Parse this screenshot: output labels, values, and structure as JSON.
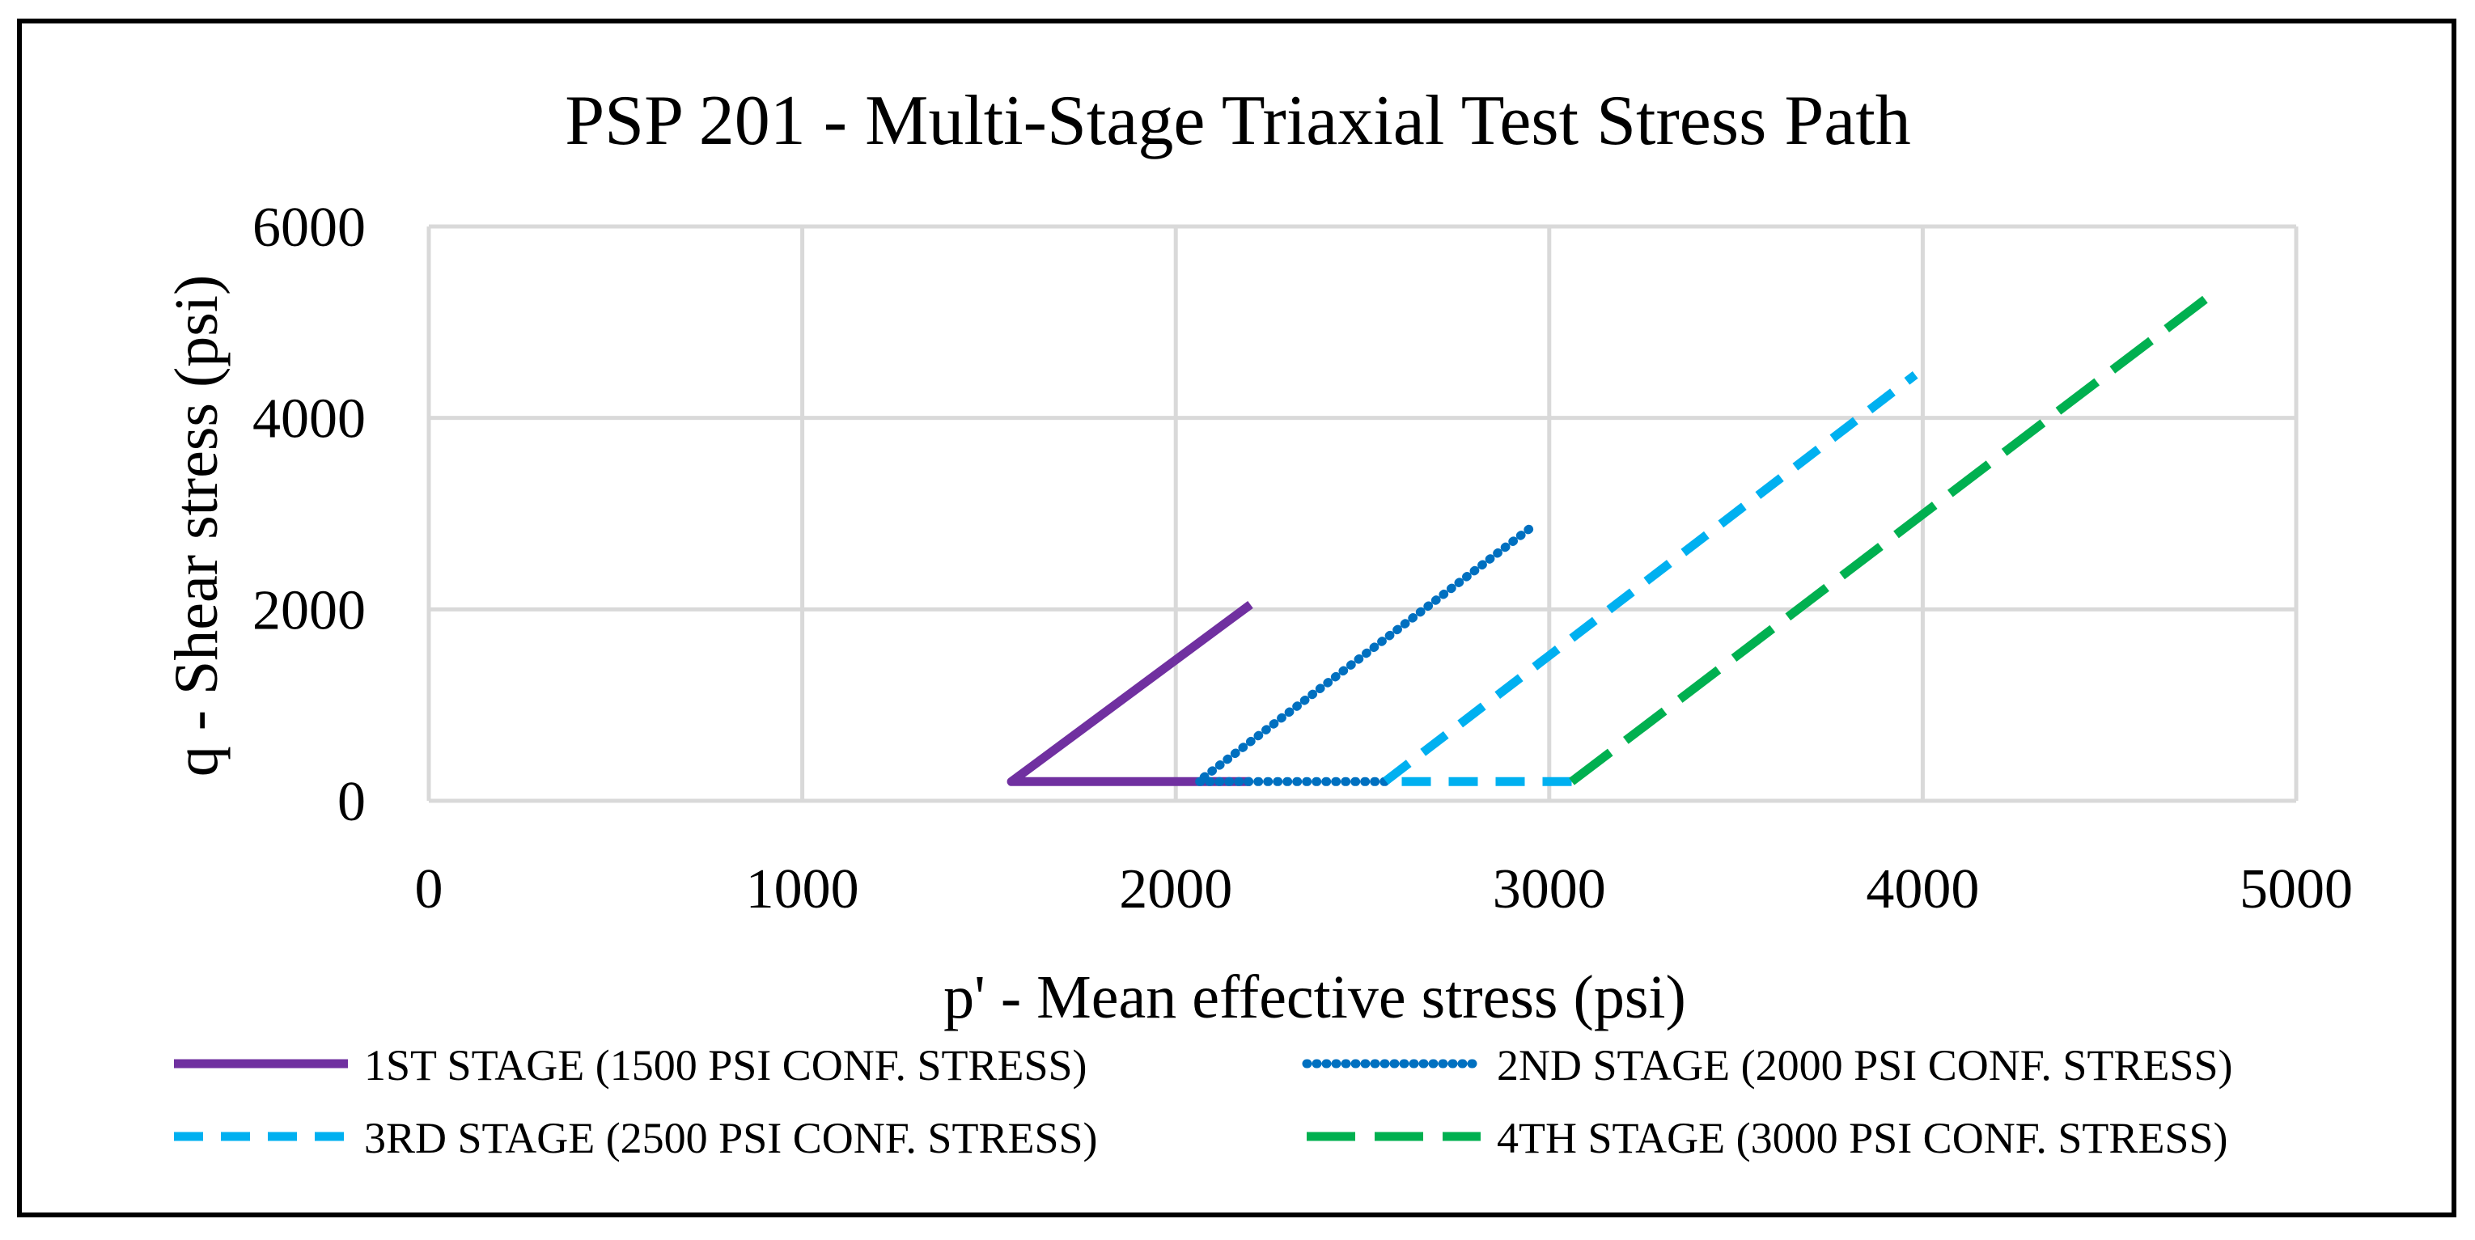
{
  "chart_data": {
    "type": "line",
    "title": "PSP 201 - Multi-Stage Triaxial Test Stress Path",
    "xlabel": "p' - Mean effective stress (psi)",
    "ylabel": "q - Shear stress (psi)",
    "xlim": [
      0,
      5000
    ],
    "ylim": [
      0,
      6000
    ],
    "x_ticks": [
      0,
      1000,
      2000,
      3000,
      4000,
      5000
    ],
    "y_ticks": [
      0,
      2000,
      4000,
      6000
    ],
    "x_tick_labels": [
      "0",
      "1000",
      "2000",
      "3000",
      "4000",
      "5000"
    ],
    "y_tick_labels": [
      "0",
      "2000",
      "4000",
      "6000"
    ],
    "grid": true,
    "legend_position": "bottom",
    "series": [
      {
        "name": "1ST STAGE (1500 PSI CONF. STRESS)",
        "color": "#7030a0",
        "style": "solid",
        "points": [
          [
            2200,
            200
          ],
          [
            1560,
            200
          ],
          [
            2200,
            2050
          ]
        ]
      },
      {
        "name": "2ND STAGE (2000 PSI CONF. STRESS)",
        "color": "#0070c0",
        "style": "dotted",
        "points": [
          [
            2560,
            200
          ],
          [
            2060,
            200
          ],
          [
            2960,
            2880
          ]
        ]
      },
      {
        "name": "3RD STAGE (2500 PSI CONF. STRESS)",
        "color": "#00b0f0",
        "style": "dashed",
        "points": [
          [
            3060,
            200
          ],
          [
            2560,
            200
          ],
          [
            3980,
            4450
          ]
        ]
      },
      {
        "name": "4TH STAGE (3000 PSI CONF. STRESS)",
        "color": "#00b050",
        "style": "long-dash",
        "points": [
          [
            3060,
            200
          ],
          [
            4760,
            5250
          ]
        ]
      }
    ]
  }
}
